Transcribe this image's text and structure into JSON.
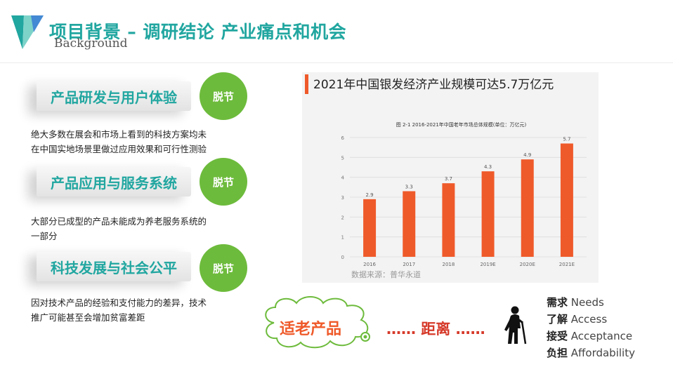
{
  "header": {
    "title": "项目背景 – 调研结论 产业痛点和机会",
    "subtitle": "Background"
  },
  "points": [
    {
      "label": "产品研发与用户体验",
      "badge": "脱节",
      "desc": [
        "绝大多数在展会和市场上看到的科技方案均未",
        "在中国实地场景里做过应用效果和可行性测验"
      ]
    },
    {
      "label": "产品应用与服务系统",
      "badge": "脱节",
      "desc": [
        "大部分已成型的产品未能成为养老服务系统的",
        "一部分"
      ]
    },
    {
      "label": "科技发展与社会公平",
      "badge": "脱节",
      "desc": [
        "因对技术产品的经验和支付能力的差异，技术",
        "推广可能甚至会增加贫富差距"
      ]
    }
  ],
  "chart_heading": "2021年中国银发经济产业规模可达5.7万亿元",
  "chart_data": {
    "type": "bar",
    "title": "图 2-1 2016-2021年中国老年市场总体规模(单位：万亿元)",
    "categories": [
      "2016",
      "2017",
      "2018",
      "2019E",
      "2020E",
      "2021E"
    ],
    "values": [
      2.9,
      3.3,
      3.7,
      4.3,
      4.9,
      5.7
    ],
    "value_labels": [
      "2.9",
      "3.3",
      "3.7",
      "4.3",
      "4.9",
      "5.7"
    ],
    "yticks": [
      "0",
      "1",
      "2",
      "3",
      "4",
      "5",
      "6"
    ],
    "ylim": [
      0,
      6
    ],
    "source": "数据来源：普华永道",
    "bar_color": "#ef5a2a",
    "grid": true
  },
  "bottom": {
    "cloud_label": "适老产品",
    "gap_label": "…… 距离 ……",
    "needs": [
      {
        "cn": "需求",
        "en": "Needs"
      },
      {
        "cn": "了解",
        "en": "Access"
      },
      {
        "cn": "接受",
        "en": "Acceptance"
      },
      {
        "cn": "负担",
        "en": "Affordability"
      }
    ]
  },
  "colors": {
    "teal": "#21a6a0",
    "green": "#6dbb3c",
    "orange": "#ef5a2a"
  }
}
